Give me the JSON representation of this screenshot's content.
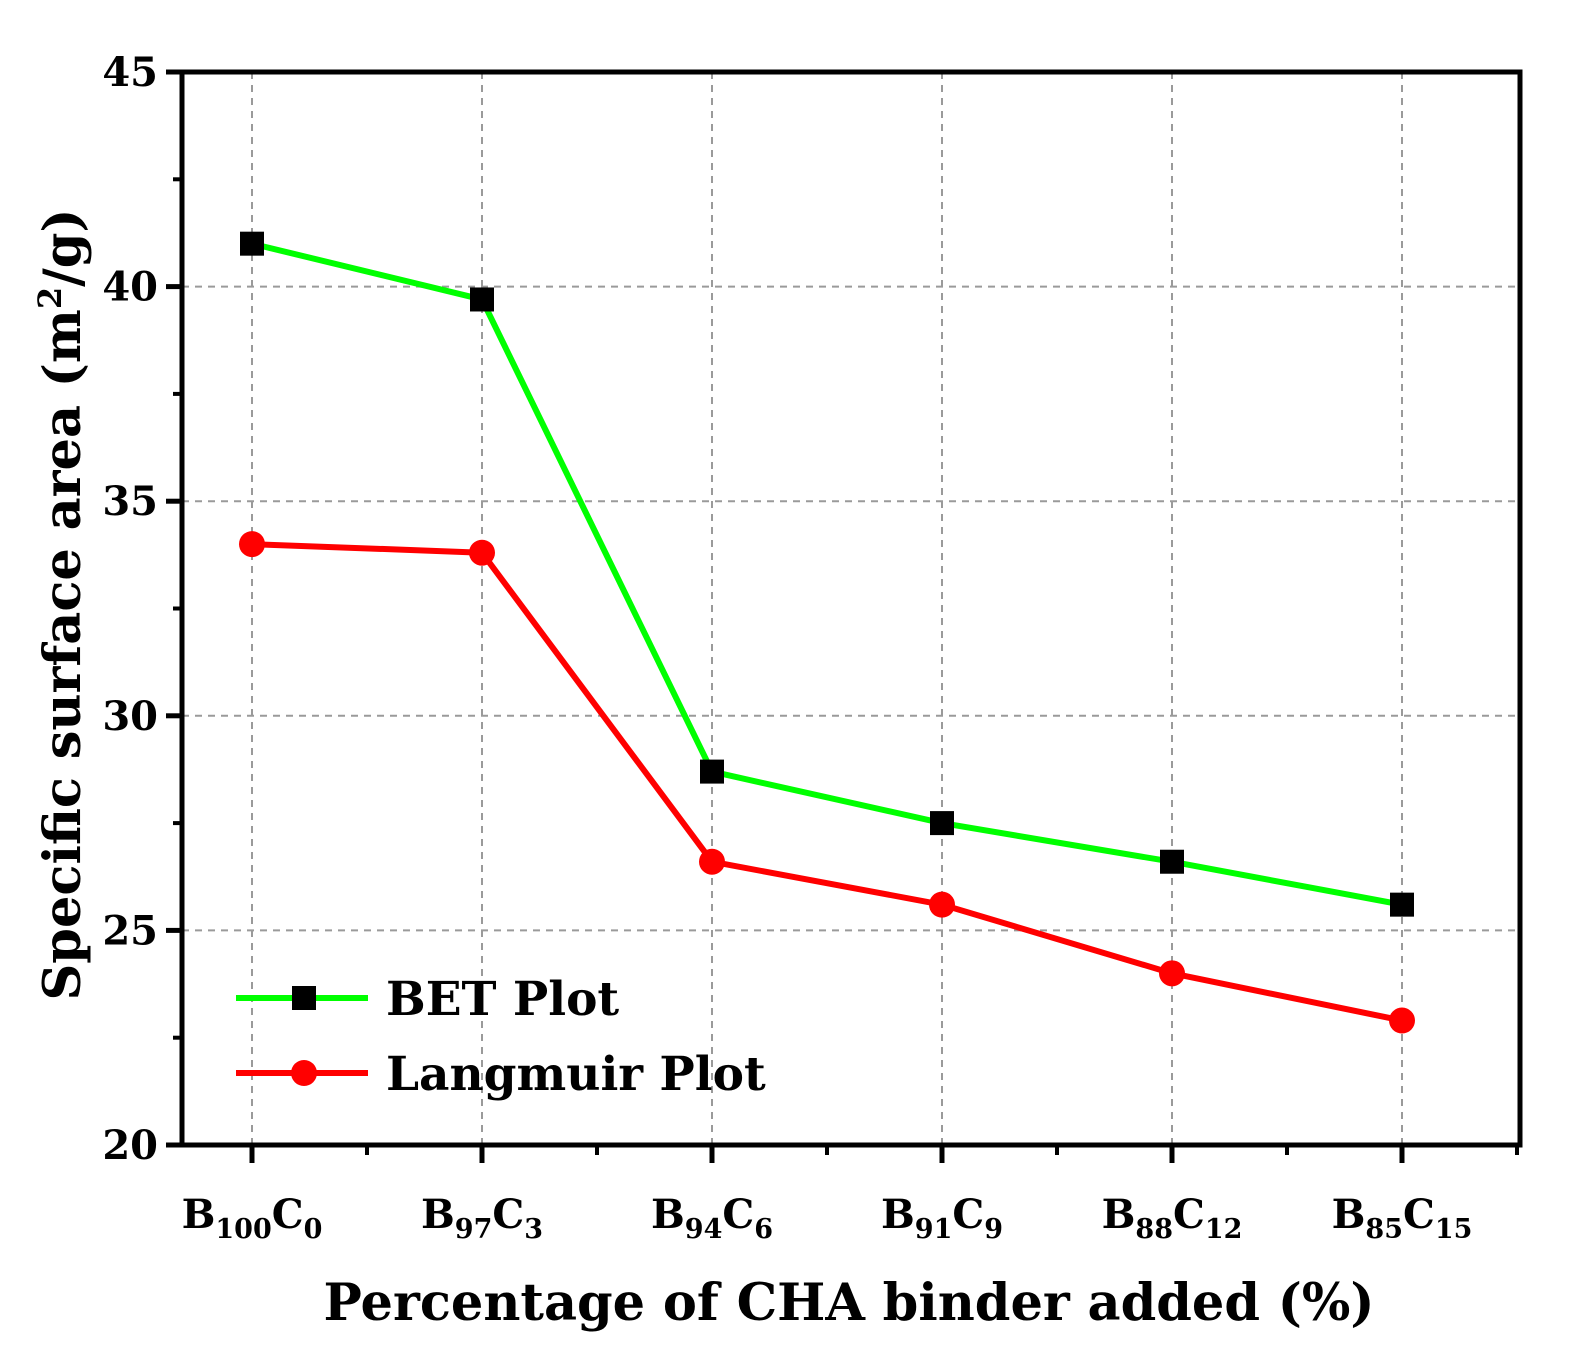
{
  "chart_data": {
    "type": "line",
    "categories": [
      {
        "main": "B",
        "sub1": "100",
        "mid": "C",
        "sub2": "0"
      },
      {
        "main": "B",
        "sub1": "97",
        "mid": "C",
        "sub2": "3"
      },
      {
        "main": "B",
        "sub1": "94",
        "mid": "C",
        "sub2": "6"
      },
      {
        "main": "B",
        "sub1": "91",
        "mid": "C",
        "sub2": "9"
      },
      {
        "main": "B",
        "sub1": "88",
        "mid": "C",
        "sub2": "12"
      },
      {
        "main": "B",
        "sub1": "85",
        "mid": "C",
        "sub2": "15"
      }
    ],
    "series": [
      {
        "name": "BET Plot",
        "values": [
          41.0,
          39.7,
          28.7,
          27.5,
          26.6,
          25.6
        ],
        "color": "#00ff00",
        "marker": "square",
        "marker_color": "#000000"
      },
      {
        "name": "Langmuir Plot",
        "values": [
          34.0,
          33.8,
          26.6,
          25.6,
          24.0,
          22.9
        ],
        "color": "#ff0000",
        "marker": "circle",
        "marker_color": "#ff0000"
      }
    ],
    "xlabel": "Percentage of CHA binder added (%)",
    "ylabel": {
      "before": "Specific surface area (m",
      "sup": "2",
      "after": "/g)"
    },
    "ylim": [
      20,
      45
    ],
    "yticks": [
      "20",
      "25",
      "30",
      "35",
      "40",
      "45"
    ],
    "grid": true,
    "legend_position": "bottom-left"
  }
}
